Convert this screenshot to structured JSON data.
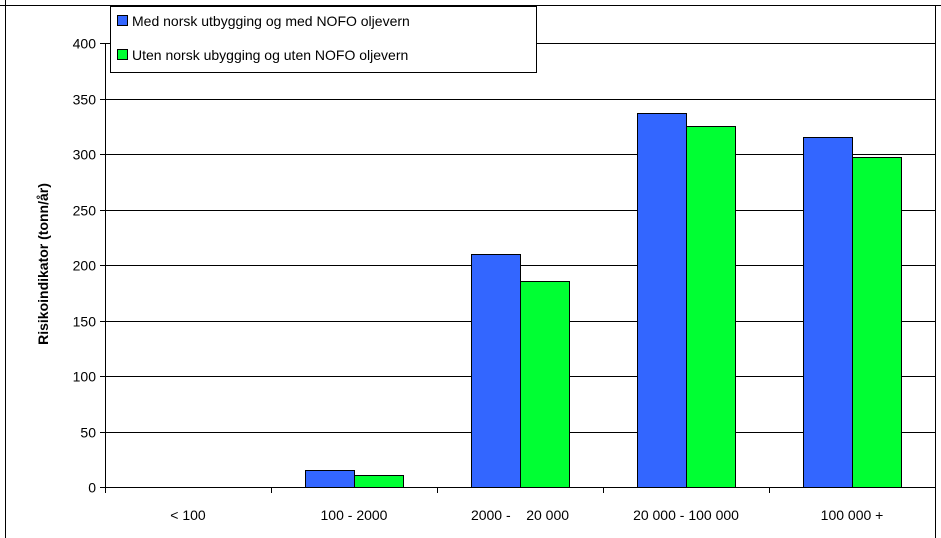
{
  "chart_data": {
    "type": "bar",
    "ylabel": "Risikoindikator (tonn/år)",
    "xlabel": "",
    "ylim": [
      0,
      400
    ],
    "yticks": [
      0,
      50,
      100,
      150,
      200,
      250,
      300,
      350,
      400
    ],
    "categories": [
      "< 100",
      "100 - 2000",
      "2000 -    20 000",
      "20 000 - 100 000",
      "100 000 +"
    ],
    "series": [
      {
        "name": "Med norsk utbygging og med NOFO oljevern",
        "color": "#3366ff",
        "values": [
          0,
          15,
          210,
          337,
          315
        ]
      },
      {
        "name": "Uten norsk ubygging og uten NOFO oljevern",
        "color": "#00ff33",
        "values": [
          0,
          11,
          186,
          325,
          297
        ]
      }
    ],
    "grid": true,
    "legend_position": "top-left"
  }
}
